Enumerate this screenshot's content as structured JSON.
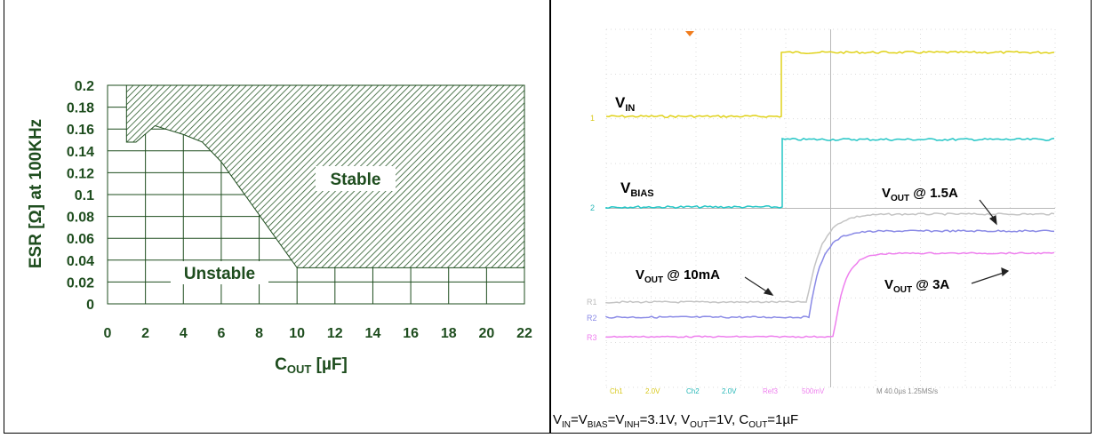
{
  "chart_data": [
    {
      "type": "area",
      "xlabel_main": "C",
      "xlabel_sub": "OUT",
      "xlabel_unit": " [µF]",
      "ylabel": "ESR [Ω] at 100KHz",
      "xlim": [
        0,
        22
      ],
      "ylim": [
        0,
        0.2
      ],
      "xticks": [
        "0",
        "2",
        "4",
        "6",
        "8",
        "10",
        "12",
        "14",
        "16",
        "18",
        "20",
        "22"
      ],
      "yticks": [
        "0",
        "0.02",
        "0.04",
        "0.06",
        "0.08",
        "0.1",
        "0.12",
        "0.14",
        "0.16",
        "0.18",
        "0.2"
      ],
      "grid": true,
      "stable_boundary": {
        "x": [
          1,
          1.5,
          2.5,
          4,
          5,
          6,
          10,
          22
        ],
        "y": [
          0.148,
          0.148,
          0.163,
          0.155,
          0.148,
          0.13,
          0.033,
          0.033
        ]
      },
      "region_labels": {
        "stable": "Stable",
        "unstable": "Unstable"
      },
      "colors": {
        "text": "#1e4d1e",
        "hatch": "#2a5a2a",
        "fill": "#ffffff"
      }
    },
    {
      "type": "line",
      "description_units": "oscilloscope capture",
      "traces": [
        {
          "name": "VIN",
          "marker": "1",
          "color": "#e0d21a"
        },
        {
          "name": "VBIAS",
          "marker": "2",
          "color": "#24c6c6"
        },
        {
          "name": "VOUT @ 10mA",
          "marker": "R1",
          "color": "#c4c4c4"
        },
        {
          "name": "VOUT @ 1.5A",
          "marker": "R2",
          "color": "#8a8ae6"
        },
        {
          "name": "VOUT @ 3A",
          "marker": "R3",
          "color": "#ee7fee"
        }
      ],
      "labels": {
        "vin_main": "V",
        "vin_sub": "IN",
        "vbias_main": "V",
        "vbias_sub": "BIAS",
        "vout15_main": "V",
        "vout15_sub": "OUT",
        "vout15_rest": " @ 1.5A",
        "vout10_main": "V",
        "vout10_sub": "OUT",
        "vout10_rest": " @ 10mA",
        "vout3_main": "V",
        "vout3_sub": "OUT",
        "vout3_rest": " @ 3A"
      },
      "status_bar": {
        "ch1": "Ch1",
        "ch1_scale": "2.0V",
        "ch2": "Ch2",
        "ch2_scale": "2.0V",
        "ref": "Ref3",
        "ref_scale": "500mV",
        "time": "M 40.0µs 1.25MS/s"
      }
    }
  ],
  "caption": {
    "v1": "V",
    "s1": "IN",
    "t1": "=V",
    "s2": "BIAS",
    "t2": "=V",
    "s3": "INH",
    "t3": "=3.1V, V",
    "s4": "OUT",
    "t4": "=1V, C",
    "s5": "OUT",
    "t5": "=1µF"
  }
}
